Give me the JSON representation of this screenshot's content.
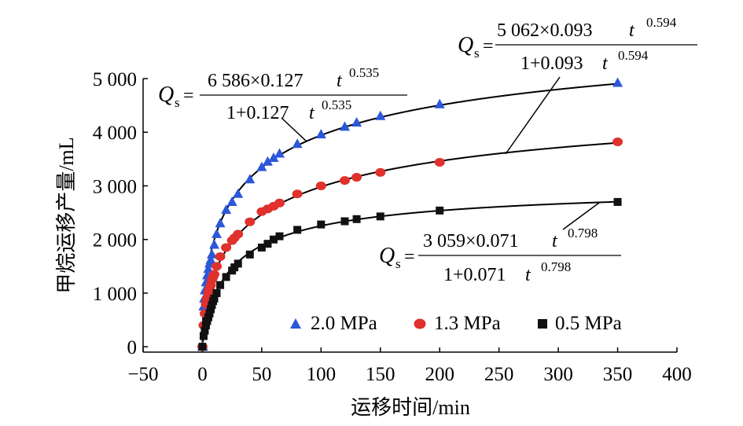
{
  "chart_data": {
    "type": "scatter",
    "xlabel": "运移时间/min",
    "ylabel": "甲烷运移产量/mL",
    "xlim": [
      -50,
      400
    ],
    "ylim": [
      -100,
      5000
    ],
    "x_ticks": [
      {
        "value": -50,
        "label": "−50"
      },
      {
        "value": 0,
        "label": "0"
      },
      {
        "value": 50,
        "label": "50"
      },
      {
        "value": 100,
        "label": "100"
      },
      {
        "value": 150,
        "label": "150"
      },
      {
        "value": 200,
        "label": "200"
      },
      {
        "value": 250,
        "label": "250"
      },
      {
        "value": 300,
        "label": "300"
      },
      {
        "value": 350,
        "label": "350"
      },
      {
        "value": 400,
        "label": "400"
      }
    ],
    "y_ticks": [
      {
        "value": 0,
        "label": "0"
      },
      {
        "value": 1000,
        "label": "1 000"
      },
      {
        "value": 2000,
        "label": "2 000"
      },
      {
        "value": 3000,
        "label": "3 000"
      },
      {
        "value": 4000,
        "label": "4 000"
      },
      {
        "value": 5000,
        "label": "5 000"
      }
    ],
    "grid": false,
    "legend_position": "bottom-right",
    "series": [
      {
        "name": "2.0 MPa",
        "marker": "triangle",
        "color": "#2b57d9",
        "fit": {
          "a": 6586,
          "b": 0.127,
          "c": 0.535
        },
        "x": [
          0,
          0.5,
          1,
          1.5,
          2,
          3,
          4,
          5,
          6,
          7,
          8,
          10,
          12,
          15,
          20,
          25,
          30,
          40,
          50,
          55,
          60,
          65,
          80,
          100,
          120,
          130,
          150,
          200,
          350
        ],
        "y": [
          0,
          0,
          750,
          900,
          1050,
          1200,
          1330,
          1450,
          1550,
          1620,
          1720,
          1900,
          2100,
          2300,
          2550,
          2700,
          2850,
          3120,
          3350,
          3450,
          3520,
          3600,
          3780,
          3960,
          4100,
          4180,
          4300,
          4520,
          4920
        ]
      },
      {
        "name": "1.3 MPa",
        "marker": "circle",
        "color": "#e0312c",
        "fit": {
          "a": 5062,
          "b": 0.093,
          "c": 0.594
        },
        "x": [
          0,
          1,
          2,
          3,
          4,
          5,
          6,
          7,
          8,
          9,
          10,
          12,
          15,
          20,
          25,
          27,
          30,
          40,
          50,
          55,
          60,
          65,
          80,
          100,
          120,
          130,
          150,
          200,
          350
        ],
        "y": [
          0,
          400,
          620,
          800,
          900,
          1000,
          1080,
          1150,
          1250,
          1300,
          1350,
          1500,
          1680,
          1850,
          1980,
          2030,
          2100,
          2330,
          2520,
          2570,
          2620,
          2680,
          2850,
          3000,
          3100,
          3160,
          3250,
          3440,
          3820
        ]
      },
      {
        "name": "0.5 MPa",
        "marker": "square",
        "color": "#111111",
        "fit": {
          "a": 3059,
          "b": 0.071,
          "c": 0.798
        },
        "x": [
          0,
          1,
          2,
          3,
          4,
          5,
          6,
          7,
          8,
          9,
          10,
          12,
          15,
          20,
          25,
          27,
          30,
          40,
          50,
          55,
          60,
          65,
          80,
          100,
          120,
          130,
          150,
          200,
          350
        ],
        "y": [
          0,
          200,
          300,
          400,
          480,
          550,
          620,
          700,
          780,
          850,
          900,
          1000,
          1150,
          1300,
          1420,
          1480,
          1550,
          1720,
          1850,
          1920,
          2000,
          2060,
          2180,
          2280,
          2340,
          2380,
          2430,
          2540,
          2700
        ]
      }
    ],
    "equations": [
      {
        "series": "2.0 MPa",
        "q": "Q",
        "sub": "s",
        "eq": "=",
        "numerator": "6 586×0.127",
        "t": "t",
        "exp": "0.535",
        "denominator": "1+0.127",
        "exp2": "0.535"
      },
      {
        "series": "1.3 MPa",
        "q": "Q",
        "sub": "s",
        "eq": "=",
        "numerator": "5 062×0.093",
        "t": "t",
        "exp": "0.594",
        "denominator": "1+0.093",
        "exp2": "0.594"
      },
      {
        "series": "0.5 MPa",
        "q": "Q",
        "sub": "s",
        "eq": "=",
        "numerator": "3 059×0.071",
        "t": "t",
        "exp": "0.798",
        "denominator": "1+0.071",
        "exp2": "0.798"
      }
    ]
  }
}
